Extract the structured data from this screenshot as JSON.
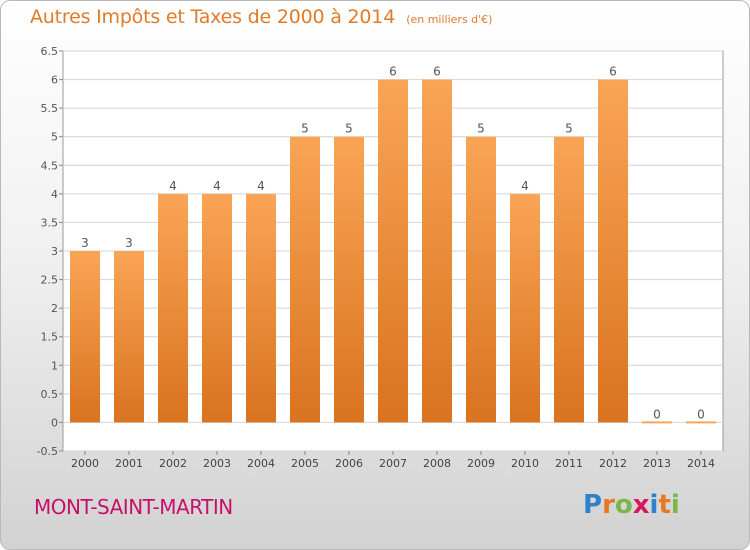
{
  "title": {
    "main": "Autres Impôts et Taxes de 2000 à 2014",
    "unit": "(en milliers d'€)"
  },
  "commune": "MONT-SAINT-MARTIN",
  "logo": {
    "letters": [
      "P",
      "r",
      "o",
      "x",
      "i",
      "t",
      "i"
    ],
    "colors": [
      "#2f82c8",
      "#e87722",
      "#7ab648",
      "#d8185c",
      "#2f82c8",
      "#e87722",
      "#7ab648"
    ]
  },
  "colors": {
    "bar_top": "#f9a555",
    "bar_bottom": "#d9731f",
    "title": "#e07b2a",
    "commune": "#c8106b"
  },
  "chart_data": {
    "type": "bar",
    "categories": [
      "2000",
      "2001",
      "2002",
      "2003",
      "2004",
      "2005",
      "2006",
      "2007",
      "2008",
      "2009",
      "2010",
      "2011",
      "2012",
      "2013",
      "2014"
    ],
    "values": [
      3,
      3,
      4,
      4,
      4,
      5,
      5,
      6,
      6,
      5,
      4,
      5,
      6,
      0,
      0
    ],
    "data_labels": [
      "3",
      "3",
      "4",
      "4",
      "4",
      "5",
      "5",
      "6",
      "6",
      "5",
      "4",
      "5",
      "6",
      "0",
      "0"
    ],
    "y_ticks": [
      "-0.5",
      "0",
      "0.5",
      "1",
      "1.5",
      "2",
      "2.5",
      "3",
      "3.5",
      "4",
      "4.5",
      "5",
      "5.5",
      "6",
      "6.5"
    ],
    "ylim": [
      -0.5,
      6.5
    ],
    "grid": "horizontal",
    "xlabel": "",
    "ylabel": ""
  }
}
